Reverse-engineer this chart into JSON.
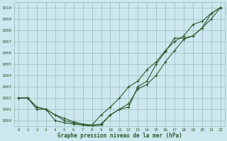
{
  "title": "Graphe pression niveau de la mer (hPa)",
  "background_color": "#cce8ee",
  "grid_color": "#99bbbb",
  "line_color": "#2d5a2d",
  "xlim": [
    -0.5,
    22.5
  ],
  "ylim": [
    999.5,
    1010.5
  ],
  "yticks": [
    1000,
    1001,
    1002,
    1003,
    1004,
    1005,
    1006,
    1007,
    1008,
    1009,
    1010
  ],
  "xticks": [
    0,
    1,
    2,
    3,
    4,
    5,
    6,
    7,
    8,
    9,
    10,
    11,
    12,
    13,
    14,
    15,
    16,
    17,
    18,
    19,
    20,
    21,
    22
  ],
  "series": [
    [
      1002,
      1002,
      1001.2,
      1001,
      1000.5,
      1000.2,
      999.9,
      999.7,
      999.6,
      999.7,
      1000.5,
      1001.0,
      1001.5,
      1002.8,
      1003.2,
      1004.0,
      1005.2,
      1006.2,
      1007.2,
      1007.5,
      1008.2,
      1009.0,
      1010.0
    ],
    [
      1002,
      1002,
      1001.2,
      1001,
      1000.5,
      1000.0,
      999.8,
      999.6,
      999.6,
      1000.5,
      1001.2,
      1002.0,
      1003.0,
      1003.5,
      1004.5,
      1005.2,
      1006.2,
      1007.0,
      1007.5,
      1008.5,
      1008.8,
      1009.5,
      1010.0
    ],
    [
      1002,
      1002,
      1001.0,
      1001,
      1000.0,
      999.8,
      999.7,
      999.6,
      999.5,
      999.6,
      1000.5,
      1001.0,
      1001.2,
      1003.0,
      1003.5,
      1005.0,
      1006.1,
      1007.3,
      1007.3,
      1007.5,
      1008.2,
      1009.5,
      1010.0
    ]
  ]
}
